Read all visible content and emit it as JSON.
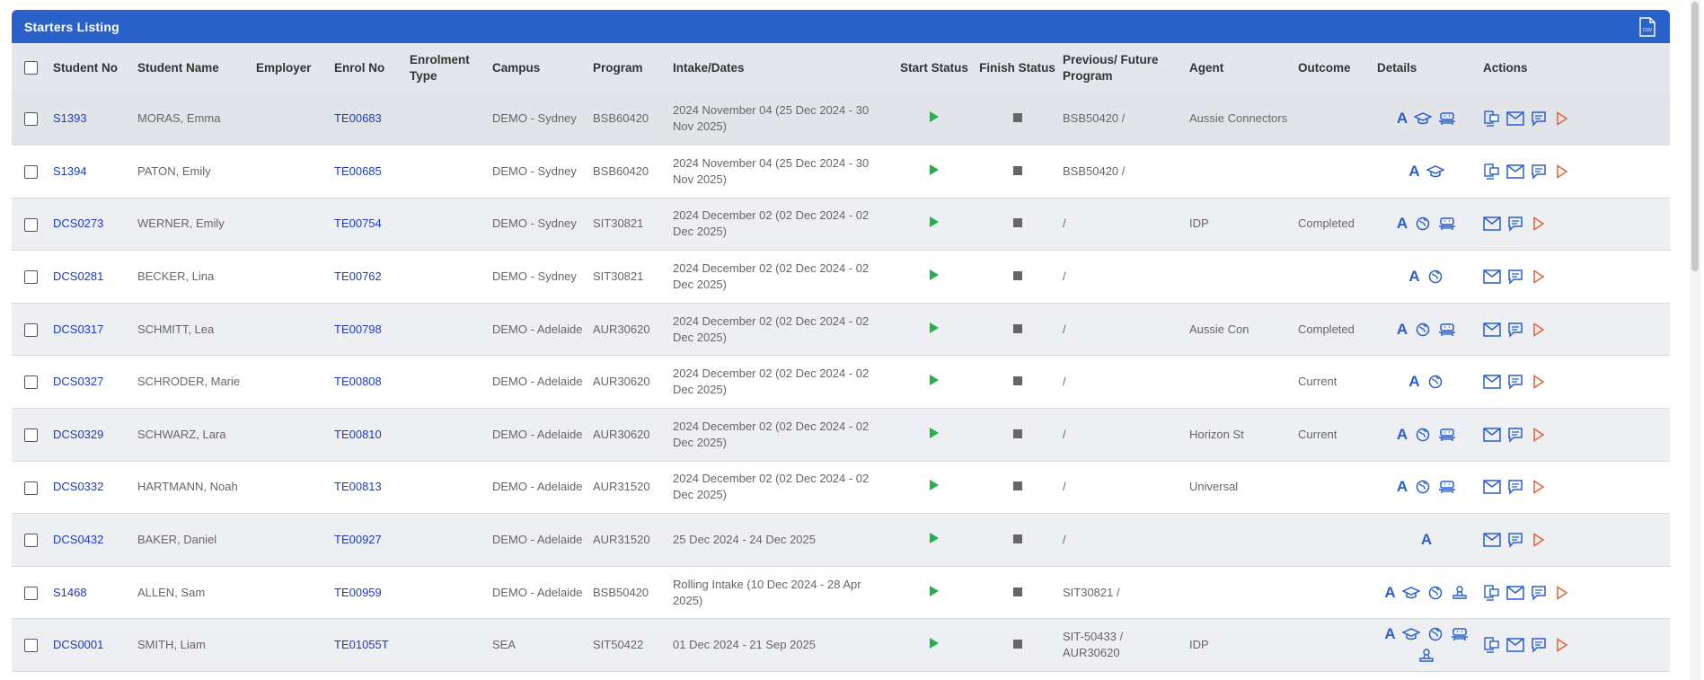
{
  "panel": {
    "title": "Starters Listing",
    "export_icon": "csv-file-icon"
  },
  "columns": {
    "student_no": "Student No",
    "student_name": "Student Name",
    "employer": "Employer",
    "enrol_no": "Enrol No",
    "enrolment_type": "Enrolment Type",
    "campus": "Campus",
    "program": "Program",
    "intake": "Intake/Dates",
    "start_status": "Start Status",
    "finish_status": "Finish Status",
    "prev_future": "Previous/ Future Program",
    "agent": "Agent",
    "outcome": "Outcome",
    "details": "Details",
    "actions": "Actions"
  },
  "colors": {
    "header": "#2a62c9",
    "link": "#1c3bbf",
    "play": "#22b14c",
    "action_play": "#e0603a",
    "icon_blue": "#2a5fc8"
  },
  "rows": [
    {
      "student_no": "S1393",
      "name": "MORAS, Emma",
      "employer": "",
      "enrol_no": "TE00683",
      "enrolment_type": "",
      "campus": "DEMO - Sydney",
      "program": "BSB60420",
      "intake": "2024 November 04 (25 Dec 2024 - 30 Nov 2025)",
      "prev_future": "BSB50420 /",
      "agent": "Aussie Connectors",
      "outcome": "",
      "details": [
        "A",
        "grad",
        "robot"
      ],
      "actions": [
        "docs",
        "mail",
        "chat",
        "play"
      ]
    },
    {
      "student_no": "S1394",
      "name": "PATON, Emily",
      "employer": "",
      "enrol_no": "TE00685",
      "enrolment_type": "",
      "campus": "DEMO - Sydney",
      "program": "BSB60420",
      "intake": "2024 November 04 (25 Dec 2024 - 30 Nov 2025)",
      "prev_future": "BSB50420 /",
      "agent": "",
      "outcome": "",
      "details": [
        "A",
        "grad"
      ],
      "actions": [
        "docs",
        "mail",
        "chat",
        "play"
      ]
    },
    {
      "student_no": "DCS0273",
      "name": "WERNER, Emily",
      "employer": "",
      "enrol_no": "TE00754",
      "enrolment_type": "",
      "campus": "DEMO - Sydney",
      "program": "SIT30821",
      "intake": "2024 December 02 (02 Dec 2024 - 02 Dec 2025)",
      "prev_future": "/",
      "agent": "IDP",
      "outcome": "Completed",
      "details": [
        "A",
        "globe",
        "robot"
      ],
      "actions": [
        "mail",
        "chat",
        "play"
      ]
    },
    {
      "student_no": "DCS0281",
      "name": "BECKER, Lina",
      "employer": "",
      "enrol_no": "TE00762",
      "enrolment_type": "",
      "campus": "DEMO - Sydney",
      "program": "SIT30821",
      "intake": "2024 December 02 (02 Dec 2024 - 02 Dec 2025)",
      "prev_future": "/",
      "agent": "",
      "outcome": "",
      "details": [
        "A",
        "globe"
      ],
      "actions": [
        "mail",
        "chat",
        "play"
      ]
    },
    {
      "student_no": "DCS0317",
      "name": "SCHMITT, Lea",
      "employer": "",
      "enrol_no": "TE00798",
      "enrolment_type": "",
      "campus": "DEMO - Adelaide",
      "program": "AUR30620",
      "intake": "2024 December 02 (02 Dec 2024 - 02 Dec 2025)",
      "prev_future": "/",
      "agent": "Aussie Con",
      "outcome": "Completed",
      "details": [
        "A",
        "globe",
        "robot"
      ],
      "actions": [
        "mail",
        "chat",
        "play"
      ]
    },
    {
      "student_no": "DCS0327",
      "name": "SCHRODER, Marie",
      "employer": "",
      "enrol_no": "TE00808",
      "enrolment_type": "",
      "campus": "DEMO - Adelaide",
      "program": "AUR30620",
      "intake": "2024 December 02 (02 Dec 2024 - 02 Dec 2025)",
      "prev_future": "/",
      "agent": "",
      "outcome": "Current",
      "details": [
        "A",
        "globe"
      ],
      "actions": [
        "mail",
        "chat",
        "play"
      ]
    },
    {
      "student_no": "DCS0329",
      "name": "SCHWARZ, Lara",
      "employer": "",
      "enrol_no": "TE00810",
      "enrolment_type": "",
      "campus": "DEMO - Adelaide",
      "program": "AUR30620",
      "intake": "2024 December 02 (02 Dec 2024 - 02 Dec 2025)",
      "prev_future": "/",
      "agent": "Horizon St",
      "outcome": "Current",
      "details": [
        "A",
        "globe",
        "robot"
      ],
      "actions": [
        "mail",
        "chat",
        "play"
      ]
    },
    {
      "student_no": "DCS0332",
      "name": "HARTMANN, Noah",
      "employer": "",
      "enrol_no": "TE00813",
      "enrolment_type": "",
      "campus": "DEMO - Adelaide",
      "program": "AUR31520",
      "intake": "2024 December 02 (02 Dec 2024 - 02 Dec 2025)",
      "prev_future": "/",
      "agent": "Universal",
      "outcome": "",
      "details": [
        "A",
        "globe",
        "robot"
      ],
      "actions": [
        "mail",
        "chat",
        "play"
      ]
    },
    {
      "student_no": "DCS0432",
      "name": "BAKER, Daniel",
      "employer": "",
      "enrol_no": "TE00927",
      "enrolment_type": "",
      "campus": "DEMO - Adelaide",
      "program": "AUR31520",
      "intake": "25 Dec 2024 - 24 Dec 2025",
      "prev_future": "/",
      "agent": "",
      "outcome": "",
      "details": [
        "A"
      ],
      "actions": [
        "mail",
        "chat",
        "play"
      ]
    },
    {
      "student_no": "S1468",
      "name": "ALLEN, Sam",
      "employer": "",
      "enrol_no": "TE00959",
      "enrolment_type": "",
      "campus": "DEMO - Adelaide",
      "program": "BSB50420",
      "intake": "Rolling Intake (10 Dec 2024 - 28 Apr 2025)",
      "prev_future": "SIT30821 /",
      "agent": "",
      "outcome": "",
      "details": [
        "A",
        "grad",
        "globe",
        "stamp"
      ],
      "actions": [
        "docs",
        "mail",
        "chat",
        "play"
      ]
    },
    {
      "student_no": "DCS0001",
      "name": "SMITH, Liam",
      "employer": "",
      "enrol_no": "TE01055T",
      "enrolment_type": "",
      "campus": "SEA",
      "program": "SIT50422",
      "intake": "01 Dec 2024 - 21 Sep 2025",
      "prev_future": "SIT-50433 / AUR30620",
      "agent": "IDP",
      "outcome": "",
      "details": [
        "A",
        "grad",
        "globe",
        "robot",
        "stamp"
      ],
      "actions": [
        "docs",
        "mail",
        "chat",
        "play"
      ]
    }
  ]
}
